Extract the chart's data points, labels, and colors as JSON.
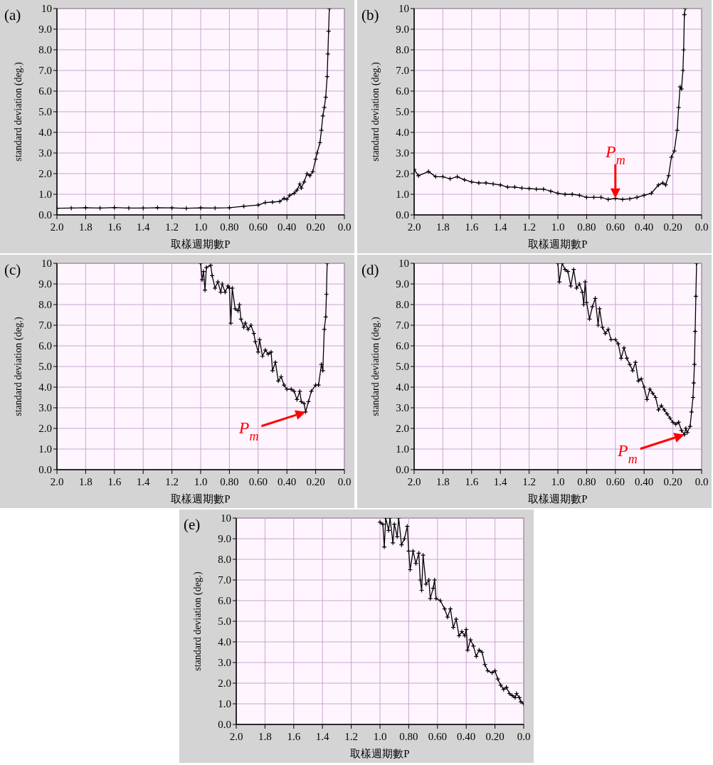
{
  "chart_data": [
    {
      "type": "line",
      "title": "(a)",
      "xlabel": "取樣週期數P",
      "ylabel": "standard deviation (deg.)",
      "xlim": [
        2,
        0
      ],
      "ylim": [
        0,
        10
      ],
      "xticks": [
        {
          "value": 2,
          "label": "2.0"
        },
        {
          "value": 1.8,
          "label": "1.8"
        },
        {
          "value": 1.6,
          "label": "1.6"
        },
        {
          "value": 1.4,
          "label": "1.4"
        },
        {
          "value": 1.2,
          "label": "1.2"
        },
        {
          "value": 1,
          "label": "1.0"
        },
        {
          "value": 0.8,
          "label": "0.80"
        },
        {
          "value": 0.6,
          "label": "0.60"
        },
        {
          "value": 0.4,
          "label": "0.40"
        },
        {
          "value": 0.2,
          "label": "0.20"
        },
        {
          "value": 0,
          "label": "0.0"
        }
      ],
      "yticks": [
        {
          "value": 0,
          "label": "0.0"
        },
        {
          "value": 1,
          "label": "1.0"
        },
        {
          "value": 2,
          "label": "2.0"
        },
        {
          "value": 3,
          "label": "3.0"
        },
        {
          "value": 4,
          "label": "4.0"
        },
        {
          "value": 5,
          "label": "5.0"
        },
        {
          "value": 6,
          "label": "6.0"
        },
        {
          "value": 7,
          "label": "7.0"
        },
        {
          "value": 8,
          "label": "8.0"
        },
        {
          "value": 9,
          "label": "9.0"
        },
        {
          "value": 10,
          "label": "10"
        }
      ],
      "grid": true,
      "marker": "cross",
      "series": [
        {
          "color": "#000000",
          "x": [
            2.0,
            1.9,
            1.8,
            1.7,
            1.6,
            1.5,
            1.4,
            1.3,
            1.2,
            1.1,
            1.0,
            0.9,
            0.8,
            0.7,
            0.6,
            0.55,
            0.5,
            0.45,
            0.42,
            0.4,
            0.38,
            0.35,
            0.33,
            0.31,
            0.3,
            0.28,
            0.26,
            0.24,
            0.22,
            0.2,
            0.19,
            0.17,
            0.16,
            0.15,
            0.14,
            0.13,
            0.12,
            0.115,
            0.11,
            0.105
          ],
          "values": [
            0.32,
            0.33,
            0.35,
            0.33,
            0.36,
            0.33,
            0.33,
            0.35,
            0.34,
            0.32,
            0.34,
            0.33,
            0.35,
            0.42,
            0.48,
            0.6,
            0.62,
            0.65,
            0.8,
            0.75,
            0.95,
            1.05,
            1.2,
            1.5,
            1.3,
            1.6,
            2.0,
            1.9,
            2.1,
            2.7,
            3.0,
            3.5,
            4.1,
            4.8,
            5.2,
            5.7,
            6.7,
            7.8,
            8.9,
            10
          ]
        }
      ]
    },
    {
      "type": "line",
      "title": "(b)",
      "xlabel": "取樣週期數P",
      "ylabel": "standard deviation (deg.)",
      "xlim": [
        2,
        0
      ],
      "ylim": [
        0,
        10
      ],
      "xticks": [
        {
          "value": 2,
          "label": "2.0"
        },
        {
          "value": 1.8,
          "label": "1.8"
        },
        {
          "value": 1.6,
          "label": "1.6"
        },
        {
          "value": 1.4,
          "label": "1.4"
        },
        {
          "value": 1.2,
          "label": "1.2"
        },
        {
          "value": 1,
          "label": "1.0"
        },
        {
          "value": 0.8,
          "label": "0.80"
        },
        {
          "value": 0.6,
          "label": "0.60"
        },
        {
          "value": 0.4,
          "label": "0.40"
        },
        {
          "value": 0.2,
          "label": "0.20"
        },
        {
          "value": 0,
          "label": "0.0"
        }
      ],
      "yticks": [
        {
          "value": 0,
          "label": "0.0"
        },
        {
          "value": 1,
          "label": "1.0"
        },
        {
          "value": 2,
          "label": "2.0"
        },
        {
          "value": 3,
          "label": "3.0"
        },
        {
          "value": 4,
          "label": "4.0"
        },
        {
          "value": 5,
          "label": "5.0"
        },
        {
          "value": 6,
          "label": "6.0"
        },
        {
          "value": 7,
          "label": "7.0"
        },
        {
          "value": 8,
          "label": "8.0"
        },
        {
          "value": 9,
          "label": "9.0"
        },
        {
          "value": 10,
          "label": "10"
        }
      ],
      "grid": true,
      "marker": "cross",
      "annotations": [
        {
          "text": "P$_{m}$",
          "x": 0.6,
          "y": 0.8
        }
      ],
      "series": [
        {
          "color": "#000000",
          "x": [
            2.0,
            1.97,
            1.9,
            1.85,
            1.8,
            1.75,
            1.7,
            1.65,
            1.6,
            1.55,
            1.5,
            1.45,
            1.4,
            1.35,
            1.3,
            1.25,
            1.2,
            1.15,
            1.1,
            1.05,
            1.0,
            0.95,
            0.9,
            0.85,
            0.8,
            0.75,
            0.7,
            0.65,
            0.6,
            0.55,
            0.5,
            0.45,
            0.4,
            0.35,
            0.3,
            0.27,
            0.25,
            0.23,
            0.21,
            0.19,
            0.17,
            0.16,
            0.15,
            0.14,
            0.13,
            0.125,
            0.12,
            0.115
          ],
          "values": [
            2.2,
            1.9,
            2.1,
            1.85,
            1.85,
            1.75,
            1.85,
            1.7,
            1.6,
            1.55,
            1.55,
            1.5,
            1.45,
            1.35,
            1.35,
            1.3,
            1.28,
            1.25,
            1.25,
            1.15,
            1.05,
            1.0,
            1.0,
            0.95,
            0.85,
            0.85,
            0.85,
            0.75,
            0.8,
            0.75,
            0.78,
            0.85,
            0.95,
            1.05,
            1.45,
            1.55,
            1.45,
            1.9,
            2.8,
            3.1,
            4.1,
            5.2,
            6.2,
            6.1,
            7.0,
            8.0,
            9.7,
            10
          ]
        }
      ]
    },
    {
      "type": "line",
      "title": "(c)",
      "xlabel": "取樣週期數P",
      "ylabel": "standard deviation (deg.)",
      "xlim": [
        2,
        0
      ],
      "ylim": [
        0,
        10
      ],
      "xticks": [
        {
          "value": 2,
          "label": "2.0"
        },
        {
          "value": 1.8,
          "label": "1.8"
        },
        {
          "value": 1.6,
          "label": "1.6"
        },
        {
          "value": 1.4,
          "label": "1.4"
        },
        {
          "value": 1.2,
          "label": "1.2"
        },
        {
          "value": 1,
          "label": "1.0"
        },
        {
          "value": 0.8,
          "label": "0.80"
        },
        {
          "value": 0.6,
          "label": "0.60"
        },
        {
          "value": 0.4,
          "label": "0.40"
        },
        {
          "value": 0.2,
          "label": "0.20"
        },
        {
          "value": 0,
          "label": "0.0"
        }
      ],
      "yticks": [
        {
          "value": 0,
          "label": "0.0"
        },
        {
          "value": 1,
          "label": "1.0"
        },
        {
          "value": 2,
          "label": "2.0"
        },
        {
          "value": 3,
          "label": "3.0"
        },
        {
          "value": 4,
          "label": "4.0"
        },
        {
          "value": 5,
          "label": "5.0"
        },
        {
          "value": 6,
          "label": "6.0"
        },
        {
          "value": 7,
          "label": "7.0"
        },
        {
          "value": 8,
          "label": "8.0"
        },
        {
          "value": 9,
          "label": "9.0"
        },
        {
          "value": 10,
          "label": "10"
        }
      ],
      "grid": true,
      "marker": "cross",
      "annotations": [
        {
          "text": "P$_{m}$",
          "x": 0.27,
          "y": 2.8
        }
      ],
      "series": [
        {
          "color": "#000000",
          "x": [
            1.0,
            0.99,
            0.98,
            0.97,
            0.96,
            0.93,
            0.92,
            0.9,
            0.88,
            0.86,
            0.85,
            0.83,
            0.81,
            0.8,
            0.79,
            0.78,
            0.76,
            0.74,
            0.73,
            0.72,
            0.7,
            0.69,
            0.67,
            0.65,
            0.63,
            0.62,
            0.6,
            0.59,
            0.57,
            0.55,
            0.53,
            0.51,
            0.5,
            0.48,
            0.46,
            0.44,
            0.42,
            0.4,
            0.37,
            0.35,
            0.33,
            0.31,
            0.3,
            0.28,
            0.27,
            0.25,
            0.23,
            0.2,
            0.18,
            0.16,
            0.15,
            0.14,
            0.13,
            0.125,
            0.12
          ],
          "values": [
            10,
            9.2,
            9.6,
            8.7,
            9.8,
            9.9,
            9.4,
            8.8,
            9.1,
            8.6,
            9.0,
            8.6,
            8.9,
            8.8,
            7.1,
            8.8,
            7.8,
            7.7,
            8.0,
            7.3,
            6.9,
            7.1,
            6.8,
            7.0,
            6.6,
            6.2,
            5.7,
            6.3,
            5.5,
            5.8,
            5.6,
            5.7,
            4.8,
            5.2,
            4.3,
            4.5,
            4.1,
            3.9,
            3.9,
            3.8,
            3.4,
            3.8,
            3.3,
            3.2,
            2.8,
            3.3,
            3.8,
            4.1,
            4.1,
            5.1,
            4.8,
            6.8,
            7.4,
            8.5,
            10
          ]
        }
      ]
    },
    {
      "type": "line",
      "title": "(d)",
      "xlabel": "取樣週期數P",
      "ylabel": "standard deviation (deg.)",
      "xlim": [
        2,
        0
      ],
      "ylim": [
        0,
        10
      ],
      "xticks": [
        {
          "value": 2,
          "label": "2.0"
        },
        {
          "value": 1.8,
          "label": "1.8"
        },
        {
          "value": 1.6,
          "label": "1.6"
        },
        {
          "value": 1.4,
          "label": "1.4"
        },
        {
          "value": 1.2,
          "label": "1.2"
        },
        {
          "value": 1,
          "label": "1.0"
        },
        {
          "value": 0.8,
          "label": "0.80"
        },
        {
          "value": 0.6,
          "label": "0.60"
        },
        {
          "value": 0.4,
          "label": "0.40"
        },
        {
          "value": 0.2,
          "label": "0.20"
        },
        {
          "value": 0,
          "label": "0.0"
        }
      ],
      "yticks": [
        {
          "value": 0,
          "label": "0.0"
        },
        {
          "value": 1,
          "label": "1.0"
        },
        {
          "value": 2,
          "label": "2.0"
        },
        {
          "value": 3,
          "label": "3.0"
        },
        {
          "value": 4,
          "label": "4.0"
        },
        {
          "value": 5,
          "label": "5.0"
        },
        {
          "value": 6,
          "label": "6.0"
        },
        {
          "value": 7,
          "label": "7.0"
        },
        {
          "value": 8,
          "label": "8.0"
        },
        {
          "value": 9,
          "label": "9.0"
        },
        {
          "value": 10,
          "label": "10"
        }
      ],
      "grid": true,
      "marker": "cross",
      "annotations": [
        {
          "text": "P$_{m}$",
          "x": 0.12,
          "y": 1.7
        }
      ],
      "series": [
        {
          "color": "#000000",
          "x": [
            1.0,
            0.99,
            0.97,
            0.95,
            0.93,
            0.91,
            0.89,
            0.87,
            0.85,
            0.83,
            0.82,
            0.81,
            0.8,
            0.78,
            0.76,
            0.74,
            0.72,
            0.71,
            0.69,
            0.67,
            0.65,
            0.63,
            0.6,
            0.58,
            0.56,
            0.54,
            0.52,
            0.5,
            0.48,
            0.46,
            0.44,
            0.42,
            0.4,
            0.38,
            0.36,
            0.34,
            0.32,
            0.3,
            0.28,
            0.26,
            0.24,
            0.22,
            0.2,
            0.18,
            0.16,
            0.14,
            0.12,
            0.11,
            0.1,
            0.08,
            0.07,
            0.06,
            0.055,
            0.05,
            0.045,
            0.04,
            0.035
          ],
          "values": [
            10,
            9.1,
            10,
            9.7,
            9.6,
            8.9,
            9.7,
            8.8,
            9.0,
            8.6,
            8.0,
            9.1,
            8.1,
            7.3,
            7.9,
            8.3,
            7.0,
            7.8,
            6.9,
            6.6,
            6.8,
            6.3,
            6.3,
            6.1,
            5.4,
            5.9,
            5.4,
            5.1,
            4.8,
            5.2,
            4.3,
            4.4,
            4.0,
            3.4,
            3.9,
            3.7,
            3.5,
            2.9,
            3.1,
            2.9,
            2.7,
            2.5,
            2.3,
            2.2,
            2.3,
            1.9,
            1.7,
            2.0,
            1.8,
            2.1,
            2.8,
            3.5,
            4.2,
            5.1,
            6.7,
            8.4,
            10
          ]
        }
      ]
    },
    {
      "type": "line",
      "title": "(e)",
      "xlabel": "取樣週期數P",
      "ylabel": "standard deviation (deg.)",
      "xlim": [
        2,
        0
      ],
      "ylim": [
        0,
        10
      ],
      "xticks": [
        {
          "value": 2,
          "label": "2.0"
        },
        {
          "value": 1.8,
          "label": "1.8"
        },
        {
          "value": 1.6,
          "label": "1.6"
        },
        {
          "value": 1.4,
          "label": "1.4"
        },
        {
          "value": 1.2,
          "label": "1.2"
        },
        {
          "value": 1,
          "label": "1.0"
        },
        {
          "value": 0.8,
          "label": "0.80"
        },
        {
          "value": 0.6,
          "label": "0.60"
        },
        {
          "value": 0.4,
          "label": "0.40"
        },
        {
          "value": 0.2,
          "label": "0.20"
        },
        {
          "value": 0,
          "label": "0.0"
        }
      ],
      "yticks": [
        {
          "value": 0,
          "label": "0.0"
        },
        {
          "value": 1,
          "label": "1.0"
        },
        {
          "value": 2,
          "label": "2.0"
        },
        {
          "value": 3,
          "label": "3.0"
        },
        {
          "value": 4,
          "label": "4.0"
        },
        {
          "value": 5,
          "label": "5.0"
        },
        {
          "value": 6,
          "label": "6.0"
        },
        {
          "value": 7,
          "label": "7.0"
        },
        {
          "value": 8,
          "label": "8.0"
        },
        {
          "value": 9,
          "label": "9.0"
        },
        {
          "value": 10,
          "label": "10"
        }
      ],
      "grid": true,
      "marker": "cross",
      "series": [
        {
          "color": "#000000",
          "x": [
            1.0,
            0.98,
            0.97,
            0.96,
            0.94,
            0.93,
            0.91,
            0.9,
            0.88,
            0.87,
            0.85,
            0.83,
            0.81,
            0.8,
            0.79,
            0.77,
            0.75,
            0.73,
            0.72,
            0.71,
            0.7,
            0.68,
            0.66,
            0.65,
            0.63,
            0.62,
            0.61,
            0.58,
            0.55,
            0.53,
            0.51,
            0.49,
            0.47,
            0.45,
            0.43,
            0.41,
            0.4,
            0.39,
            0.37,
            0.35,
            0.33,
            0.31,
            0.29,
            0.27,
            0.25,
            0.22,
            0.2,
            0.18,
            0.16,
            0.14,
            0.12,
            0.1,
            0.08,
            0.06,
            0.05,
            0.03,
            0.02,
            0.0
          ],
          "values": [
            9.8,
            9.7,
            8.6,
            10,
            9.4,
            10,
            8.8,
            9.7,
            9.1,
            10,
            8.7,
            9.0,
            9.6,
            8.4,
            7.5,
            8.4,
            7.8,
            8.3,
            7.0,
            6.5,
            8.2,
            6.8,
            7.0,
            6.1,
            6.6,
            7.0,
            6.1,
            6.0,
            5.6,
            5.2,
            5.6,
            4.7,
            5.1,
            4.3,
            4.5,
            4.3,
            4.6,
            3.6,
            4.1,
            3.8,
            3.3,
            3.6,
            3.5,
            2.9,
            2.6,
            2.5,
            2.6,
            2.2,
            1.9,
            1.7,
            1.8,
            1.5,
            1.4,
            1.3,
            1.5,
            1.3,
            1.1,
            1.0
          ]
        }
      ]
    }
  ]
}
